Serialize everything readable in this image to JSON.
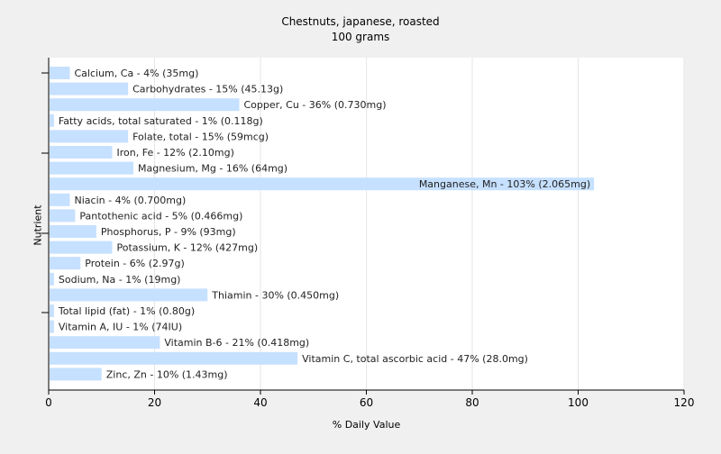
{
  "chart_data": {
    "type": "bar",
    "orientation": "horizontal",
    "title": "Chestnuts, japanese, roasted",
    "subtitle": "100 grams",
    "xlabel": "% Daily Value",
    "ylabel": "Nutrient",
    "xlim": [
      0,
      120
    ],
    "xticks": [
      0,
      20,
      40,
      60,
      80,
      100,
      120
    ],
    "grid": true,
    "bar_color": "#c6e0ff",
    "categories": [
      "Calcium, Ca",
      "Carbohydrates",
      "Copper, Cu",
      "Fatty acids, total saturated",
      "Folate, total",
      "Iron, Fe",
      "Magnesium, Mg",
      "Manganese, Mn",
      "Niacin",
      "Pantothenic acid",
      "Phosphorus, P",
      "Potassium, K",
      "Protein",
      "Sodium, Na",
      "Thiamin",
      "Total lipid (fat)",
      "Vitamin A, IU",
      "Vitamin B-6",
      "Vitamin C, total ascorbic acid",
      "Zinc, Zn"
    ],
    "values": [
      4,
      15,
      36,
      1,
      15,
      12,
      16,
      103,
      4,
      5,
      9,
      12,
      6,
      1,
      30,
      1,
      1,
      21,
      47,
      10
    ],
    "labels": [
      "Calcium, Ca - 4% (35mg)",
      "Carbohydrates - 15% (45.13g)",
      "Copper, Cu - 36% (0.730mg)",
      "Fatty acids, total saturated - 1% (0.118g)",
      "Folate, total - 15% (59mcg)",
      "Iron, Fe - 12% (2.10mg)",
      "Magnesium, Mg - 16% (64mg)",
      "Manganese, Mn - 103% (2.065mg)",
      "Niacin - 4% (0.700mg)",
      "Pantothenic acid - 5% (0.466mg)",
      "Phosphorus, P - 9% (93mg)",
      "Potassium, K - 12% (427mg)",
      "Protein - 6% (2.97g)",
      "Sodium, Na - 1% (19mg)",
      "Thiamin - 30% (0.450mg)",
      "Total lipid (fat) - 1% (0.80g)",
      "Vitamin A, IU - 1% (74IU)",
      "Vitamin B-6 - 21% (0.418mg)",
      "Vitamin C, total ascorbic acid - 47% (28.0mg)",
      "Zinc, Zn - 10% (1.43mg)"
    ]
  }
}
